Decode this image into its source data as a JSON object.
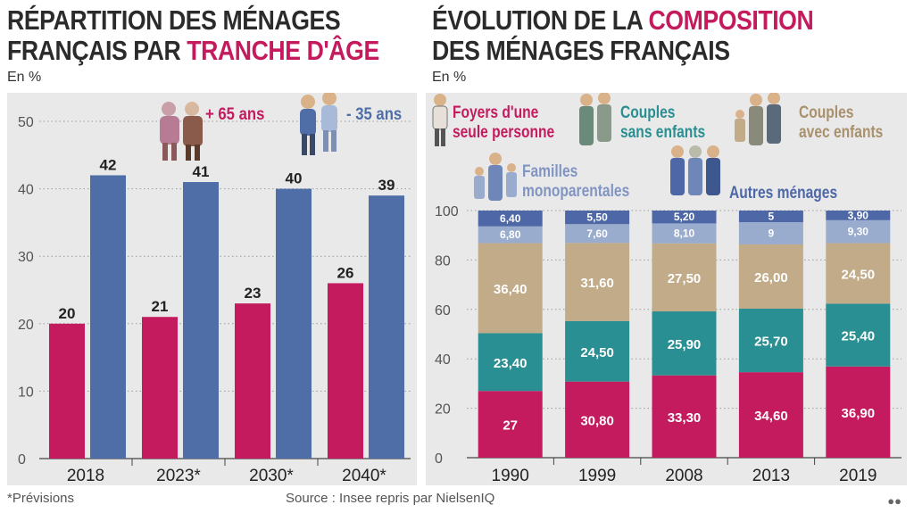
{
  "left": {
    "title_line1": "RÉPARTITION DES MÉNAGES",
    "title_line2_pre": "FRANÇAIS PAR ",
    "title_line2_hl": "TRANCHE D'ÂGE",
    "unit": "En %"
  },
  "right": {
    "title_line1_pre": "ÉVOLUTION DE LA ",
    "title_line1_hl": "COMPOSITION",
    "title_line2": "DES MÉNAGES FRANÇAIS",
    "unit": "En %"
  },
  "footer": {
    "note": "*Prévisions",
    "source": "Source : Insee repris par NielsenIQ"
  },
  "colors": {
    "pink": "#c41b5e",
    "blue": "#4f6ea8",
    "teal": "#2a8f92",
    "tan": "#c2ab88",
    "light_blue": "#9aaccd",
    "dark_blue": "#4d67a7",
    "panel_bg": "#e9e9e9"
  },
  "chart_data": [
    {
      "type": "bar",
      "categories": [
        "2018",
        "2023*",
        "2030*",
        "2040*"
      ],
      "series": [
        {
          "name": "+ 65 ans",
          "values": [
            20,
            21,
            23,
            26
          ],
          "color": "#c41b5e"
        },
        {
          "name": "- 35 ans",
          "values": [
            42,
            41,
            40,
            39
          ],
          "color": "#4f6ea8"
        }
      ],
      "ylim": [
        0,
        50
      ],
      "yticks": [
        "0",
        "10",
        "20",
        "30",
        "40",
        "50"
      ],
      "grid": true
    },
    {
      "type": "bar",
      "stacked": true,
      "categories": [
        "1990",
        "1999",
        "2008",
        "2013",
        "2019"
      ],
      "series": [
        {
          "name": "Foyers d'une seule personne",
          "values": [
            27,
            30.8,
            33.3,
            34.6,
            36.9
          ],
          "labels": [
            "27",
            "30,80",
            "33,30",
            "34,60",
            "36,90"
          ],
          "color": "#c41b5e"
        },
        {
          "name": "Couples sans enfants",
          "values": [
            23.4,
            24.5,
            25.9,
            25.7,
            25.4
          ],
          "labels": [
            "23,40",
            "24,50",
            "25,90",
            "25,70",
            "25,40"
          ],
          "color": "#2a8f92"
        },
        {
          "name": "Couples avec enfants",
          "values": [
            36.4,
            31.6,
            27.5,
            26.0,
            24.5
          ],
          "labels": [
            "36,40",
            "31,60",
            "27,50",
            "26,00",
            "24,50"
          ],
          "color": "#c2ab88"
        },
        {
          "name": "Familles monoparentales",
          "values": [
            6.8,
            7.6,
            8.1,
            9,
            9.3
          ],
          "labels": [
            "6,80",
            "7,60",
            "8,10",
            "9",
            "9,30"
          ],
          "color": "#9aaccd"
        },
        {
          "name": "Autres ménages",
          "values": [
            6.4,
            5.5,
            5.2,
            5,
            3.9
          ],
          "labels": [
            "6,40",
            "5,50",
            "5,20",
            "5",
            "3,90"
          ],
          "color": "#4d67a7"
        }
      ],
      "ylim": [
        0,
        100
      ],
      "yticks": [
        "0",
        "20",
        "40",
        "60",
        "80",
        "100"
      ],
      "grid": true
    }
  ]
}
